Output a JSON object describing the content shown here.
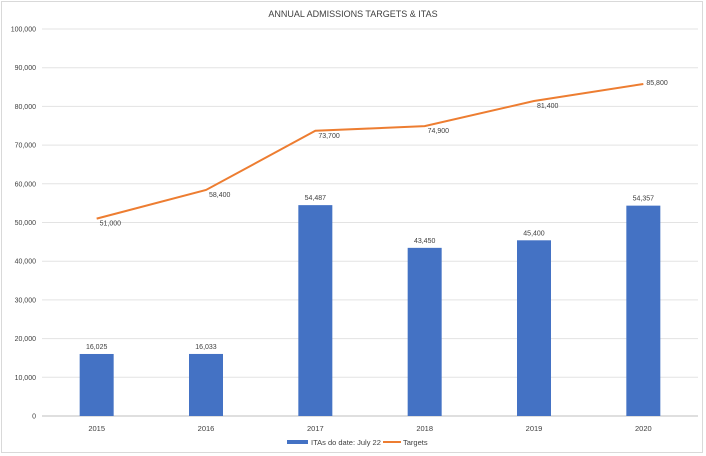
{
  "chart_data": {
    "type": "bar",
    "title": "ANNUAL ADMISSIONS TARGETS & ITAS",
    "xlabel": "",
    "ylabel": "",
    "ylim": [
      0,
      100000
    ],
    "yticks": [
      0,
      10000,
      20000,
      30000,
      40000,
      50000,
      60000,
      70000,
      80000,
      90000,
      100000
    ],
    "ytick_labels": [
      "0",
      "10,000",
      "20,000",
      "30,000",
      "40,000",
      "50,000",
      "60,000",
      "70,000",
      "80,000",
      "90,000",
      "100,000"
    ],
    "grid": true,
    "legend_position": "bottom",
    "categories": [
      "2015",
      "2016",
      "2017",
      "2018",
      "2019",
      "2020"
    ],
    "series": [
      {
        "name": "ITAs do date: July 22",
        "kind": "bar",
        "color": "#4472c4",
        "values": [
          16025,
          16033,
          54487,
          43450,
          45400,
          54357
        ],
        "labels": [
          "16,025",
          "16,033",
          "54,487",
          "43,450",
          "45,400",
          "54,357"
        ]
      },
      {
        "name": "Targets",
        "kind": "line",
        "color": "#ed7d31",
        "values": [
          51000,
          58400,
          73700,
          74900,
          81400,
          85800
        ],
        "labels": [
          "51,000",
          "58,400",
          "73,700",
          "74,900",
          "81,400",
          "85,800"
        ]
      }
    ]
  }
}
